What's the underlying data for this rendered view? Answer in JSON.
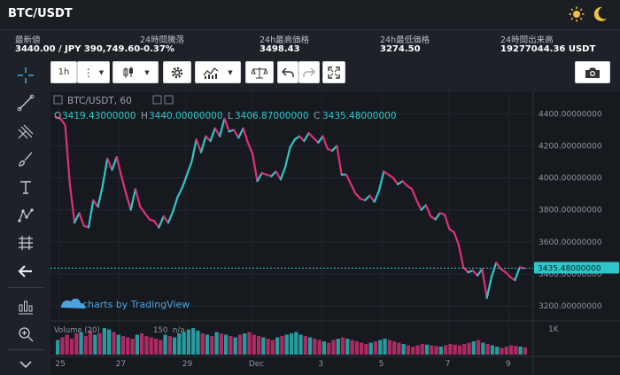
{
  "header": {
    "pair": "BTC/USDT"
  },
  "icons": {
    "theme_light": "sun-icon",
    "theme_dark": "moon-icon"
  },
  "stats": [
    {
      "label": "最新値",
      "value": "3440.00 / JPY 390,749.60"
    },
    {
      "label": "24時間騰落",
      "value": "-0.37%"
    },
    {
      "label": "24h最高価格",
      "value": "3498.43"
    },
    {
      "label": "24h最低価格",
      "value": "3274.50"
    },
    {
      "label": "24時間出来高",
      "value": "19277044.36 USDT"
    }
  ],
  "toolbar": {
    "interval": "1h"
  },
  "chart": {
    "symbol": "BTC/USDT, 60",
    "ohlc": {
      "o_label": "O",
      "o": "3419.43000000",
      "h_label": "H",
      "h": "3440.00000000",
      "l_label": "L",
      "l": "3406.87000000",
      "c_label": "C",
      "c": "3435.48000000"
    },
    "watermark": "charts by TradingView",
    "volume_label": "Volume (20)",
    "volume_value": "150",
    "volume_na": "n/a",
    "volume_axis": "1K",
    "last_price": "3435.48000000",
    "colors": {
      "up": "#2ec7c9",
      "down": "#e0307a",
      "background": "#161a1f"
    }
  },
  "chart_data": {
    "type": "line",
    "title": "",
    "y_ticks": [
      "4400.00000000",
      "4200.00000000",
      "4000.00000000",
      "3800.00000000",
      "3600.00000000",
      "3400.00000000",
      "3200.00000000"
    ],
    "x_ticks": [
      "25",
      "27",
      "29",
      "Dec",
      "3",
      "5",
      "7",
      "9"
    ],
    "ylim": [
      3150,
      4480
    ],
    "series": [
      {
        "values": [
          4380,
          4370,
          4330,
          3960,
          3720,
          3780,
          3700,
          3690,
          3860,
          3820,
          3950,
          4120,
          4050,
          4130,
          4010,
          3900,
          3800,
          3930,
          3820,
          3780,
          3740,
          3730,
          3690,
          3760,
          3720,
          3790,
          3880,
          3940,
          4020,
          4100,
          4240,
          4160,
          4260,
          4230,
          4310,
          4260,
          4370,
          4290,
          4300,
          4250,
          4310,
          4220,
          4150,
          3980,
          4030,
          4020,
          4010,
          4040,
          3990,
          4070,
          4190,
          4240,
          4260,
          4230,
          4280,
          4250,
          4220,
          4260,
          4180,
          4170,
          4200,
          4020,
          4020,
          3960,
          3900,
          3870,
          3860,
          3890,
          3850,
          3920,
          4040,
          4020,
          4000,
          3960,
          3980,
          3950,
          3930,
          3860,
          3800,
          3830,
          3760,
          3740,
          3780,
          3770,
          3680,
          3660,
          3580,
          3440,
          3410,
          3420,
          3390,
          3430,
          3250,
          3380,
          3470,
          3430,
          3410,
          3380,
          3360,
          3440,
          3435
        ]
      }
    ],
    "volume": [
      220,
      260,
      300,
      240,
      320,
      340,
      280,
      360,
      300,
      320,
      400,
      380,
      340,
      300,
      280,
      260,
      240,
      300,
      320,
      280,
      260,
      240,
      220,
      300,
      280,
      260,
      320,
      340,
      380,
      400,
      360,
      320,
      300,
      280,
      340,
      320,
      300,
      280,
      260,
      300,
      320,
      340,
      300,
      280,
      260,
      240,
      220,
      260,
      280,
      300,
      320,
      340,
      300,
      280,
      260,
      240,
      220,
      200,
      180,
      220,
      240,
      260,
      240,
      220,
      200,
      180,
      160,
      180,
      200,
      220,
      240,
      220,
      200,
      180,
      160,
      140,
      120,
      140,
      160,
      150,
      140,
      130,
      120,
      140,
      160,
      150,
      140,
      160,
      180,
      200,
      220,
      180,
      160,
      140,
      120,
      100,
      120,
      140,
      130,
      120,
      110
    ],
    "grid": true,
    "legend": "none"
  }
}
